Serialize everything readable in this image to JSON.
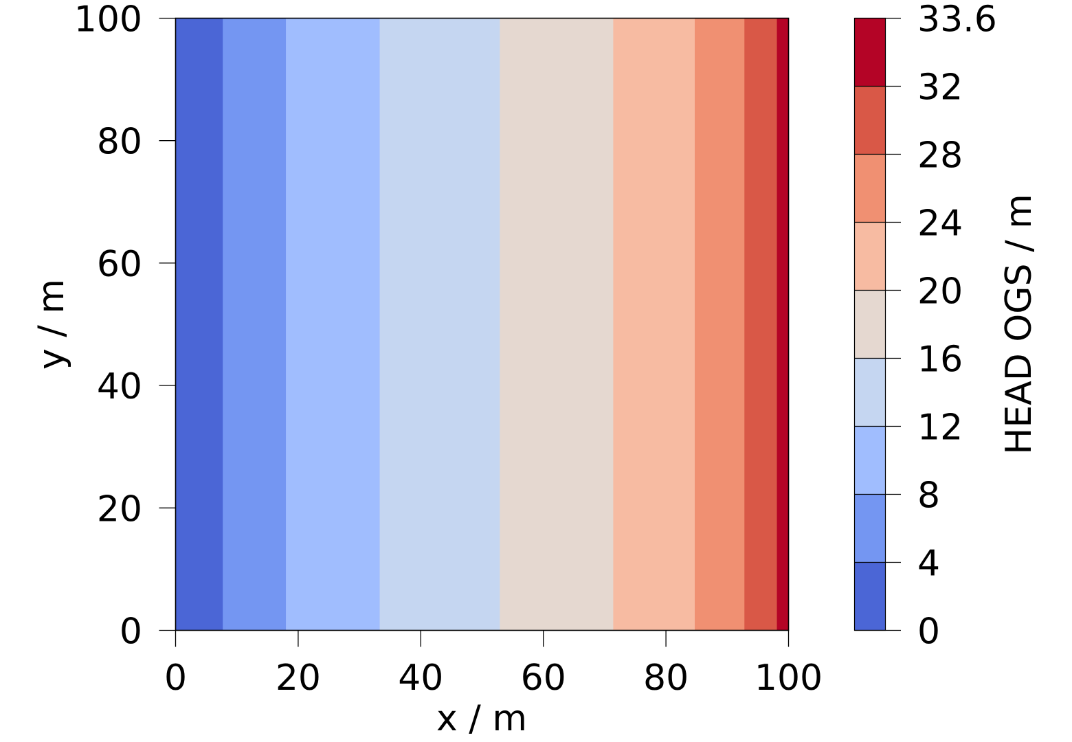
{
  "chart_data": {
    "type": "heatmap",
    "subtype": "filled-contour",
    "title": "",
    "xlabel": "x / m",
    "ylabel": "y / m",
    "xlim": [
      0,
      100
    ],
    "ylim": [
      0,
      100
    ],
    "x_ticks": [
      0,
      20,
      40,
      60,
      80,
      100
    ],
    "x_tick_labels": [
      "0",
      "20",
      "40",
      "60",
      "80",
      "100"
    ],
    "y_ticks": [
      0,
      20,
      40,
      60,
      80,
      100
    ],
    "y_tick_labels": [
      "0",
      "20",
      "40",
      "60",
      "80",
      "100"
    ],
    "grid": false,
    "description": "Hydraulic head increases from left (x=0) to right (x=100), constant along y; contour bands are vertical strips.",
    "bands": [
      {
        "level_min": 0,
        "level_max": 4,
        "x_start": 0,
        "x_end": 7.7,
        "color": "#4b66d6"
      },
      {
        "level_min": 4,
        "level_max": 8,
        "x_start": 7.7,
        "x_end": 18.0,
        "color": "#7496f2"
      },
      {
        "level_min": 8,
        "level_max": 12,
        "x_start": 18.0,
        "x_end": 33.3,
        "color": "#a0bdfe"
      },
      {
        "level_min": 12,
        "level_max": 16,
        "x_start": 33.3,
        "x_end": 52.9,
        "color": "#c5d6f1"
      },
      {
        "level_min": 16,
        "level_max": 20,
        "x_start": 52.9,
        "x_end": 71.4,
        "color": "#e5d8d0"
      },
      {
        "level_min": 20,
        "level_max": 24,
        "x_start": 71.4,
        "x_end": 84.7,
        "color": "#f7bba2"
      },
      {
        "level_min": 24,
        "level_max": 28,
        "x_start": 84.7,
        "x_end": 92.8,
        "color": "#f09072"
      },
      {
        "level_min": 28,
        "level_max": 32,
        "x_start": 92.8,
        "x_end": 98.1,
        "color": "#d95847"
      },
      {
        "level_min": 32,
        "level_max": 33.6,
        "x_start": 98.1,
        "x_end": 100,
        "color": "#b40426"
      }
    ],
    "colorbar": {
      "label": "HEAD OGS / m",
      "range": [
        0,
        33.6
      ],
      "ticks": [
        0,
        4,
        8,
        12,
        16,
        20,
        24,
        28,
        32,
        33.6
      ],
      "tick_labels": [
        "0",
        "4",
        "8",
        "12",
        "16",
        "20",
        "24",
        "28",
        "32",
        "33.6"
      ],
      "colormap": "coolwarm",
      "position": "right"
    }
  }
}
